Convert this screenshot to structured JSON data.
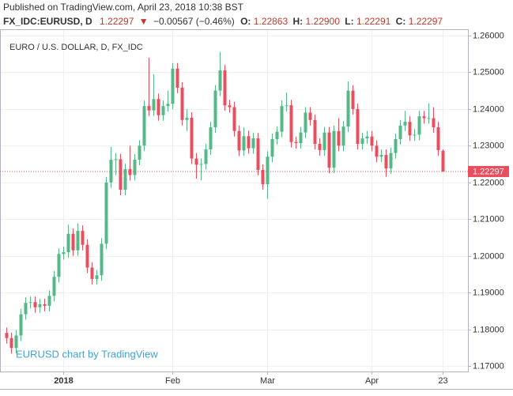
{
  "header": {
    "published": "Published on TradingView.com, April 23, 2018 10:38 BST",
    "symbol": "FX_IDC:EURUSD, D",
    "last": "1.22297",
    "arrow": "▼",
    "change": "−0.00567 (−0.46%)",
    "o_label": "O:",
    "o": "1.22863",
    "h_label": "H:",
    "h": "1.22900",
    "l_label": "L:",
    "l": "1.22291",
    "c_label": "C:",
    "c": "1.22297"
  },
  "chart_data": {
    "type": "candlestick",
    "title": "EURO / U.S. DOLLAR, D, FX_IDC",
    "watermark": "EURUSD chart by TradingView",
    "up_color": "#53b987",
    "down_color": "#eb4d5c",
    "grid": true,
    "categories": [
      null,
      null,
      null,
      null,
      null,
      null,
      null,
      null,
      null,
      null,
      null,
      null,
      "2018",
      null,
      null,
      null,
      null,
      null,
      null,
      null,
      null,
      null,
      null,
      null,
      null,
      null,
      null,
      null,
      null,
      null,
      null,
      null,
      null,
      null,
      null,
      "Feb",
      null,
      null,
      null,
      null,
      null,
      null,
      null,
      null,
      null,
      null,
      null,
      null,
      null,
      null,
      null,
      null,
      null,
      null,
      null,
      "Mar",
      null,
      null,
      null,
      null,
      null,
      null,
      null,
      null,
      null,
      null,
      null,
      null,
      null,
      null,
      null,
      null,
      null,
      null,
      null,
      null,
      null,
      "Apr",
      null,
      null,
      null,
      null,
      null,
      null,
      null,
      null,
      null,
      null,
      null,
      null,
      null,
      null,
      "23"
    ],
    "open": [
      1.179,
      1.1776,
      1.1749,
      1.1783,
      1.1841,
      1.1872,
      1.1874,
      1.186,
      1.1868,
      1.1864,
      1.1891,
      1.1943,
      1.2005,
      1.201,
      1.206,
      1.2015,
      1.2068,
      1.203,
      1.1968,
      1.1937,
      1.1947,
      1.2033,
      1.22,
      1.2262,
      1.2263,
      1.218,
      1.2236,
      1.222,
      1.2262,
      1.23,
      1.2408,
      1.2396,
      1.2427,
      1.2383,
      1.2408,
      1.2414,
      1.251,
      1.2458,
      1.237,
      1.2376,
      1.2265,
      1.2248,
      1.225,
      1.229,
      1.235,
      1.245,
      1.2505,
      1.241,
      1.2405,
      1.234,
      1.2287,
      1.2326,
      1.2293,
      1.232,
      1.2234,
      1.2195,
      1.227,
      1.2318,
      1.2338,
      1.2408,
      1.241,
      1.231,
      1.2307,
      1.2336,
      1.239,
      1.237,
      1.2305,
      1.2288,
      1.2336,
      1.224,
      1.234,
      1.23,
      1.2352,
      1.245,
      1.24,
      1.2305,
      1.232,
      1.2325,
      1.23,
      1.227,
      1.2275,
      1.2238,
      1.228,
      1.2318,
      1.2355,
      1.2365,
      1.2328,
      1.233,
      1.238,
      1.2375,
      1.2375,
      1.235,
      1.22863
    ],
    "high": [
      1.1805,
      1.1791,
      1.1798,
      1.1856,
      1.1887,
      1.1889,
      1.1889,
      1.1883,
      1.1883,
      1.1906,
      1.1958,
      1.202,
      1.2025,
      1.2085,
      1.2075,
      1.2088,
      1.2083,
      1.2045,
      1.1983,
      1.1962,
      1.2048,
      1.2215,
      1.2297,
      1.228,
      1.2278,
      1.2251,
      1.23,
      1.2277,
      1.2315,
      1.2423,
      1.254,
      1.2495,
      1.2442,
      1.2423,
      1.245,
      1.2525,
      1.2525,
      1.2473,
      1.24,
      1.2391,
      1.228,
      1.2265,
      1.2305,
      1.2365,
      1.2465,
      1.2555,
      1.252,
      1.2425,
      1.242,
      1.2355,
      1.235,
      1.2341,
      1.2335,
      1.2335,
      1.2249,
      1.2285,
      1.2333,
      1.2353,
      1.2423,
      1.2445,
      1.2425,
      1.2325,
      1.2351,
      1.2405,
      1.2405,
      1.2385,
      1.232,
      1.2351,
      1.2351,
      1.2355,
      1.2375,
      1.2367,
      1.2475,
      1.2465,
      1.2415,
      1.2335,
      1.234,
      1.234,
      1.2315,
      1.229,
      1.229,
      1.2295,
      1.2333,
      1.237,
      1.2395,
      1.238,
      1.2345,
      1.2395,
      1.2395,
      1.2415,
      1.2405,
      1.2365,
      1.229
    ],
    "low": [
      1.1761,
      1.1734,
      1.1734,
      1.1768,
      1.1826,
      1.1857,
      1.1845,
      1.1845,
      1.1849,
      1.1849,
      1.1876,
      1.1928,
      1.199,
      1.1995,
      1.2,
      1.2,
      1.2015,
      1.1953,
      1.1922,
      1.1922,
      1.1932,
      1.2018,
      1.2185,
      1.222,
      1.2165,
      1.2165,
      1.2205,
      1.2205,
      1.2247,
      1.2285,
      1.2381,
      1.2381,
      1.2368,
      1.2368,
      1.2393,
      1.2399,
      1.2443,
      1.2355,
      1.234,
      1.225,
      1.221,
      1.2206,
      1.2235,
      1.2275,
      1.2335,
      1.2435,
      1.2395,
      1.239,
      1.2325,
      1.2272,
      1.2272,
      1.2278,
      1.2278,
      1.2219,
      1.218,
      1.2155,
      1.2255,
      1.2303,
      1.2323,
      1.2393,
      1.2295,
      1.2292,
      1.2292,
      1.2321,
      1.2355,
      1.229,
      1.2273,
      1.2273,
      1.2225,
      1.2225,
      1.2285,
      1.2285,
      1.2337,
      1.2385,
      1.229,
      1.229,
      1.2305,
      1.2285,
      1.2255,
      1.2255,
      1.2215,
      1.2223,
      1.2265,
      1.2303,
      1.234,
      1.2313,
      1.2313,
      1.2315,
      1.236,
      1.236,
      1.2335,
      1.2273,
      1.22291
    ],
    "close": [
      1.1776,
      1.1749,
      1.1783,
      1.1841,
      1.1872,
      1.1874,
      1.186,
      1.1868,
      1.1864,
      1.1891,
      1.1943,
      1.2005,
      1.201,
      1.206,
      1.2015,
      1.2068,
      1.203,
      1.1968,
      1.1937,
      1.1947,
      1.2033,
      1.22,
      1.2262,
      1.2263,
      1.218,
      1.2236,
      1.222,
      1.2262,
      1.23,
      1.2408,
      1.2396,
      1.2427,
      1.2383,
      1.2408,
      1.2414,
      1.251,
      1.2458,
      1.237,
      1.2376,
      1.2265,
      1.2248,
      1.225,
      1.229,
      1.235,
      1.245,
      1.2505,
      1.241,
      1.2405,
      1.234,
      1.2287,
      1.2326,
      1.2293,
      1.232,
      1.2234,
      1.2195,
      1.227,
      1.2318,
      1.2338,
      1.2408,
      1.241,
      1.231,
      1.2307,
      1.2336,
      1.239,
      1.237,
      1.2305,
      1.2288,
      1.2336,
      1.224,
      1.234,
      1.23,
      1.2352,
      1.245,
      1.24,
      1.2305,
      1.232,
      1.2325,
      1.23,
      1.227,
      1.2275,
      1.2238,
      1.228,
      1.2318,
      1.2355,
      1.2365,
      1.2328,
      1.233,
      1.238,
      1.2375,
      1.2375,
      1.235,
      1.2288,
      1.22297
    ],
    "ylim": [
      1.1685,
      1.2615
    ],
    "yticks": [
      {
        "value": 1.17,
        "label": "1.17000"
      },
      {
        "value": 1.18,
        "label": "1.18000"
      },
      {
        "value": 1.19,
        "label": "1.19000"
      },
      {
        "value": 1.2,
        "label": "1.20000"
      },
      {
        "value": 1.21,
        "label": "1.21000"
      },
      {
        "value": 1.22,
        "label": "1.22000"
      },
      {
        "value": 1.23,
        "label": "1.23000"
      },
      {
        "value": 1.24,
        "label": "1.24000"
      },
      {
        "value": 1.25,
        "label": "1.25000"
      },
      {
        "value": 1.26,
        "label": "1.26000"
      }
    ]
  }
}
